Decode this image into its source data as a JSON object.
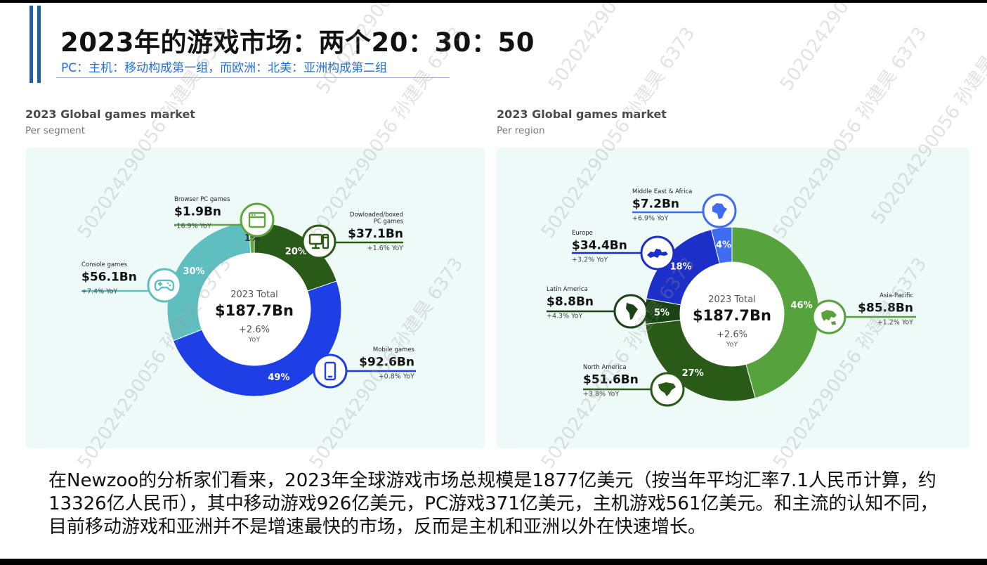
{
  "title": "2023年的游戏市场：两个20：30：50",
  "subtitle": "PC：主机：移动构成第一组，而欧洲：北美：亚洲构成第二组",
  "watermark": "502024290056 孙建昊 6373",
  "body_text": "在Newzoo的分析家们看来，2023年全球游戏市场总规模是1877亿美元（按当年平均汇率7.1人民币计算，约13326亿人民币），其中移动游戏926亿美元，PC游戏371亿美元，主机游戏561亿美元。和主流的认知不同，目前移动游戏和亚洲并不是增速最快的市场，反而是主机和亚洲以外在快速增长。",
  "colors": {
    "mobile": "#1f3fe6",
    "console": "#5fbfc0",
    "boxed_pc": "#2a5a17",
    "browser_pc": "#5fa63c",
    "asia_pacific": "#56a23c",
    "north_america": "#2a5a17",
    "latin_america": "#1a4415",
    "europe": "#1c2fc6",
    "mea": "#3f6cf0"
  },
  "chart_data": [
    {
      "type": "pie",
      "variant": "donut",
      "title": "2023 Global games market",
      "subtitle": "Per segment",
      "center": {
        "label": "2023 Total",
        "value": "$187.7Bn",
        "growth": "+2.6%",
        "growth_unit": "YoY"
      },
      "slices": [
        {
          "name": "Dowloaded/boxed PC games",
          "value": 37.1,
          "value_label": "$37.1Bn",
          "percent": 20,
          "percent_label": "20%",
          "yoy": "+1.6% YoY",
          "color_key": "boxed_pc",
          "icon": "desktop-computer-icon"
        },
        {
          "name": "Mobile games",
          "value": 92.6,
          "value_label": "$92.6Bn",
          "percent": 49,
          "percent_label": "49%",
          "yoy": "+0.8% YoY",
          "color_key": "mobile",
          "icon": "smartphone-icon"
        },
        {
          "name": "Console games",
          "value": 56.1,
          "value_label": "$56.1Bn",
          "percent": 30,
          "percent_label": "30%",
          "yoy": "+7.4% YoY",
          "color_key": "console",
          "icon": "gamepad-icon"
        },
        {
          "name": "Browser PC games",
          "value": 1.9,
          "value_label": "$1.9Bn",
          "percent": 1,
          "percent_label": "1%",
          "yoy": "-16.9% YoY",
          "color_key": "browser_pc",
          "icon": "browser-window-icon"
        }
      ]
    },
    {
      "type": "pie",
      "variant": "donut",
      "title": "2023 Global games market",
      "subtitle": "Per region",
      "center": {
        "label": "2023 Total",
        "value": "$187.7Bn",
        "growth": "+2.6%",
        "growth_unit": "YoY"
      },
      "slices": [
        {
          "name": "Asia-Pacific",
          "value": 85.8,
          "value_label": "$85.8Bn",
          "percent": 46,
          "percent_label": "46%",
          "yoy": "+1.2% YoY",
          "color_key": "asia_pacific",
          "icon": "asia-map-icon"
        },
        {
          "name": "North America",
          "value": 51.6,
          "value_label": "$51.6Bn",
          "percent": 27,
          "percent_label": "27%",
          "yoy": "+3.8% YoY",
          "color_key": "north_america",
          "icon": "north-america-map-icon"
        },
        {
          "name": "Latin America",
          "value": 8.8,
          "value_label": "$8.8Bn",
          "percent": 5,
          "percent_label": "5%",
          "yoy": "+4.3% YoY",
          "color_key": "latin_america",
          "icon": "latin-america-map-icon"
        },
        {
          "name": "Europe",
          "value": 34.4,
          "value_label": "$34.4Bn",
          "percent": 18,
          "percent_label": "18%",
          "yoy": "+3.2% YoY",
          "color_key": "europe",
          "icon": "europe-map-icon"
        },
        {
          "name": "Middle East & Africa",
          "value": 7.2,
          "value_label": "$7.2Bn",
          "percent": 4,
          "percent_label": "4%",
          "yoy": "+6.9% YoY",
          "color_key": "mea",
          "icon": "africa-map-icon"
        }
      ]
    }
  ]
}
